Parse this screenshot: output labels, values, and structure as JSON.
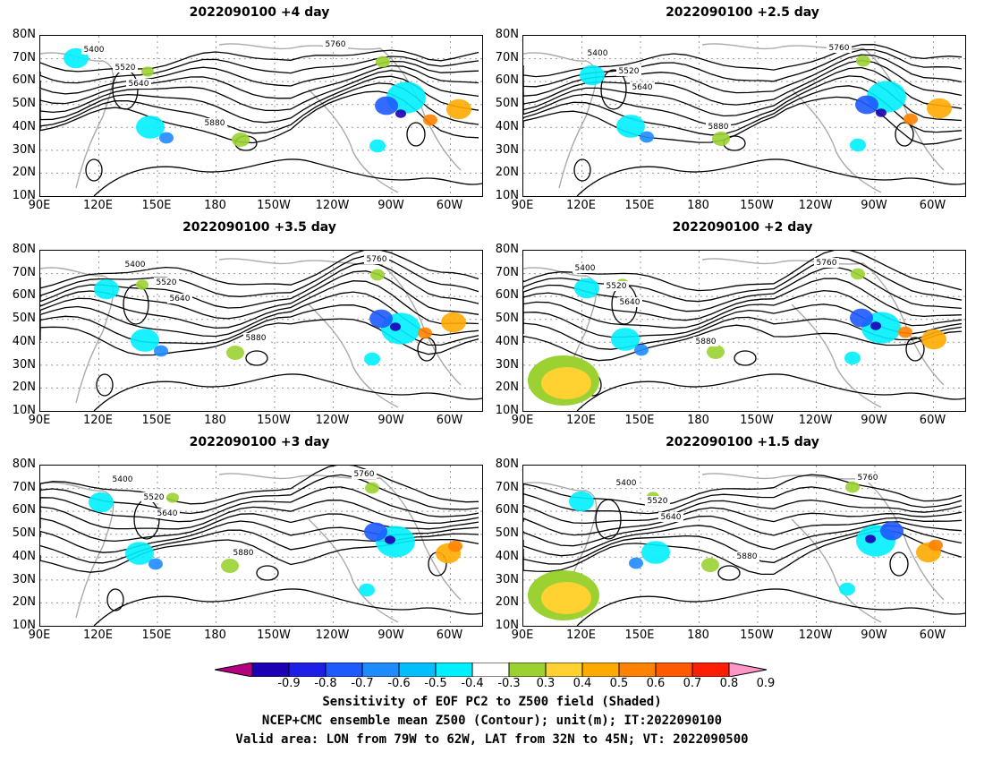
{
  "panels": [
    {
      "title": "2022090100 +4 day"
    },
    {
      "title": "2022090100 +2.5 day"
    },
    {
      "title": "2022090100 +3.5 day"
    },
    {
      "title": "2022090100 +2 day"
    },
    {
      "title": "2022090100 +3 day"
    },
    {
      "title": "2022090100 +1.5 day"
    }
  ],
  "lat_labels": [
    "80N",
    "70N",
    "60N",
    "50N",
    "40N",
    "30N",
    "20N",
    "10N"
  ],
  "lon_labels": [
    "90E",
    "120E",
    "150E",
    "180",
    "150W",
    "120W",
    "90W",
    "60W"
  ],
  "contour_labels": [
    "5400",
    "5520",
    "5640",
    "5760",
    "5880"
  ],
  "colorbar": {
    "colors": [
      "#b4007f",
      "#1e00b4",
      "#1e1ee6",
      "#1e5aff",
      "#1e8cff",
      "#00beff",
      "#00f0ff",
      "#ffffff",
      "#9bd232",
      "#ffd232",
      "#ffaa00",
      "#ff8200",
      "#ff5a00",
      "#ff1e00",
      "#ff96c8"
    ],
    "labels": [
      "-0.9",
      "-0.8",
      "-0.7",
      "-0.6",
      "-0.5",
      "-0.4",
      "-0.3",
      "0.3",
      "0.4",
      "0.5",
      "0.6",
      "0.7",
      "0.8",
      "0.9"
    ]
  },
  "captions": [
    "Sensitivity of EOF PC2 to Z500 field (Shaded)",
    "NCEP+CMC ensemble mean Z500 (Contour); unit(m); IT:2022090100",
    "Valid area: LON from 79W to 62W, LAT from 32N to 45N; VT: 2022090500"
  ]
}
